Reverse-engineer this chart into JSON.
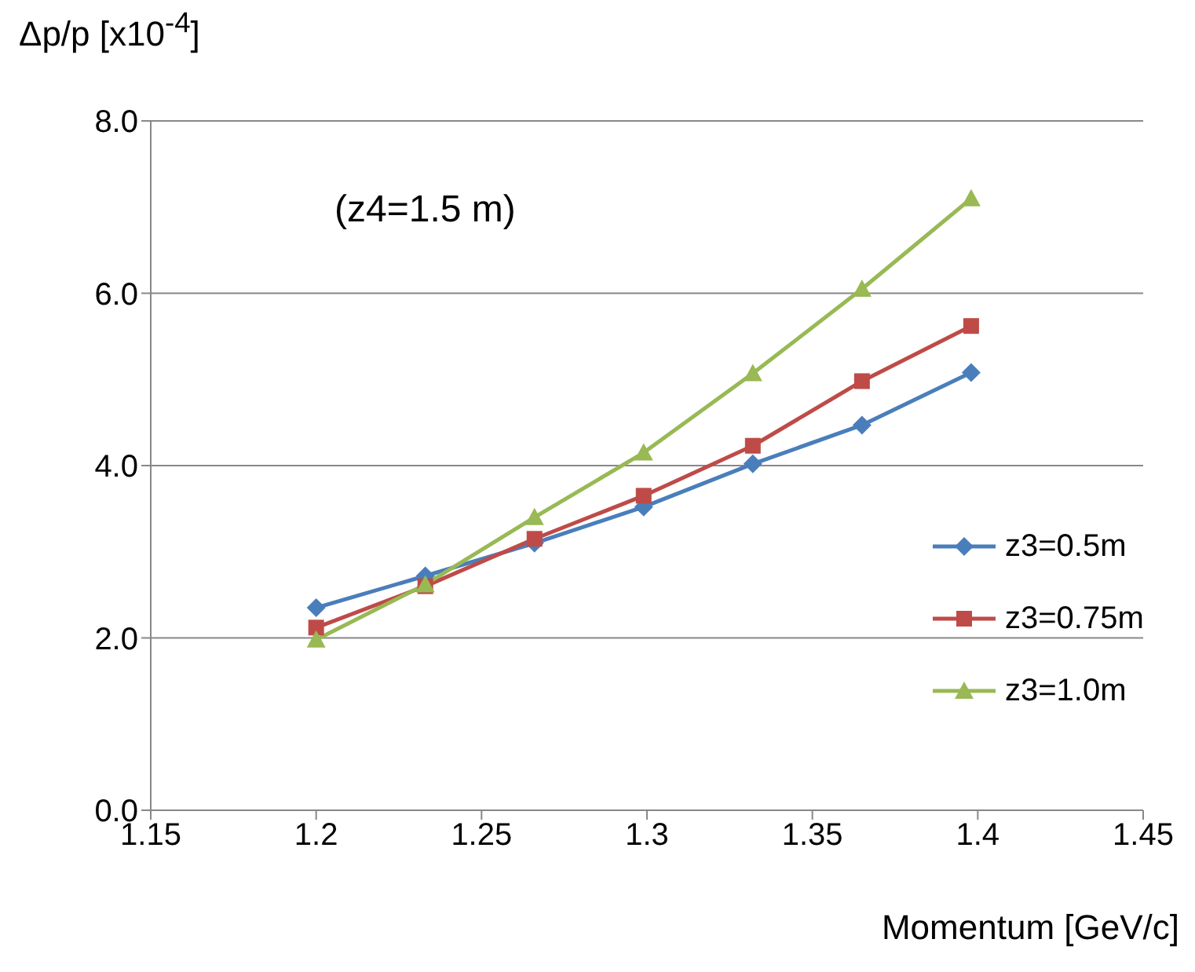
{
  "chart_data": {
    "type": "line",
    "ylabel": "Δp/p [x10$^{-4}$]",
    "xlabel": "Momentum [GeV/c]",
    "annotations": [
      "(z4=1.5 m)"
    ],
    "x": [
      1.2,
      1.233,
      1.266,
      1.299,
      1.332,
      1.365,
      1.398
    ],
    "series": [
      {
        "name": "z3=0.5m",
        "color": "#4a7ebb",
        "marker": "diamond",
        "values": [
          2.35,
          2.72,
          3.1,
          3.52,
          4.02,
          4.47,
          5.08
        ]
      },
      {
        "name": "z3=0.75m",
        "color": "#be4b48",
        "marker": "square",
        "values": [
          2.12,
          2.6,
          3.15,
          3.65,
          4.23,
          4.98,
          5.62
        ]
      },
      {
        "name": "z3=1.0m",
        "color": "#98b954",
        "marker": "triangle",
        "values": [
          1.98,
          2.62,
          3.4,
          4.15,
          5.07,
          6.05,
          7.1
        ]
      }
    ],
    "xlim": [
      1.15,
      1.45
    ],
    "xticks": [
      1.15,
      1.2,
      1.25,
      1.3,
      1.35,
      1.4,
      1.45
    ],
    "ylim": [
      0,
      8
    ],
    "yticks": [
      {
        "value": 0,
        "label": "0.0"
      },
      {
        "value": 2,
        "label": "2.0"
      },
      {
        "value": 4,
        "label": "4.0"
      },
      {
        "value": 6,
        "label": "6.0"
      },
      {
        "value": 8,
        "label": "8.0"
      }
    ],
    "grid": "y",
    "legend": "right"
  }
}
